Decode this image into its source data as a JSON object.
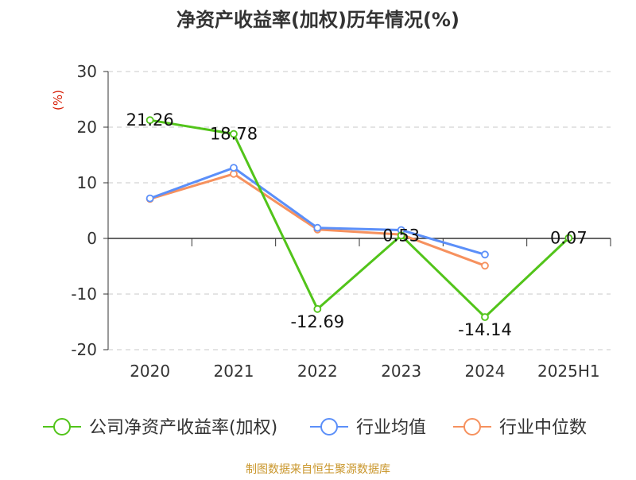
{
  "chart_data": {
    "type": "line",
    "title": "净资产收益率(加权)历年情况(%)",
    "ylabel": "(%)",
    "categories": [
      "2020",
      "2021",
      "2022",
      "2023",
      "2024",
      "2025H1"
    ],
    "ylim": [
      -20,
      30
    ],
    "yticks": [
      30,
      20,
      10,
      0,
      -10,
      -20
    ],
    "grid": "horizontal dashed",
    "legend_position": "bottom",
    "series": [
      {
        "name": "公司净资产收益率(加权)",
        "color": "#52c41a",
        "values": [
          21.26,
          18.78,
          -12.69,
          0.53,
          -14.14,
          0.07
        ],
        "labels": [
          "21.26",
          "18.78",
          "-12.69",
          "0.53",
          "-14.14",
          "0.07"
        ]
      },
      {
        "name": "行业均值",
        "color": "#5b8ff9",
        "values": [
          7.2,
          12.7,
          1.9,
          1.5,
          -2.9,
          null
        ]
      },
      {
        "name": "行业中位数",
        "color": "#f6915e",
        "values": [
          7.1,
          11.6,
          1.6,
          0.7,
          -4.9,
          null
        ]
      }
    ]
  },
  "source": "制图数据来自恒生聚源数据库"
}
